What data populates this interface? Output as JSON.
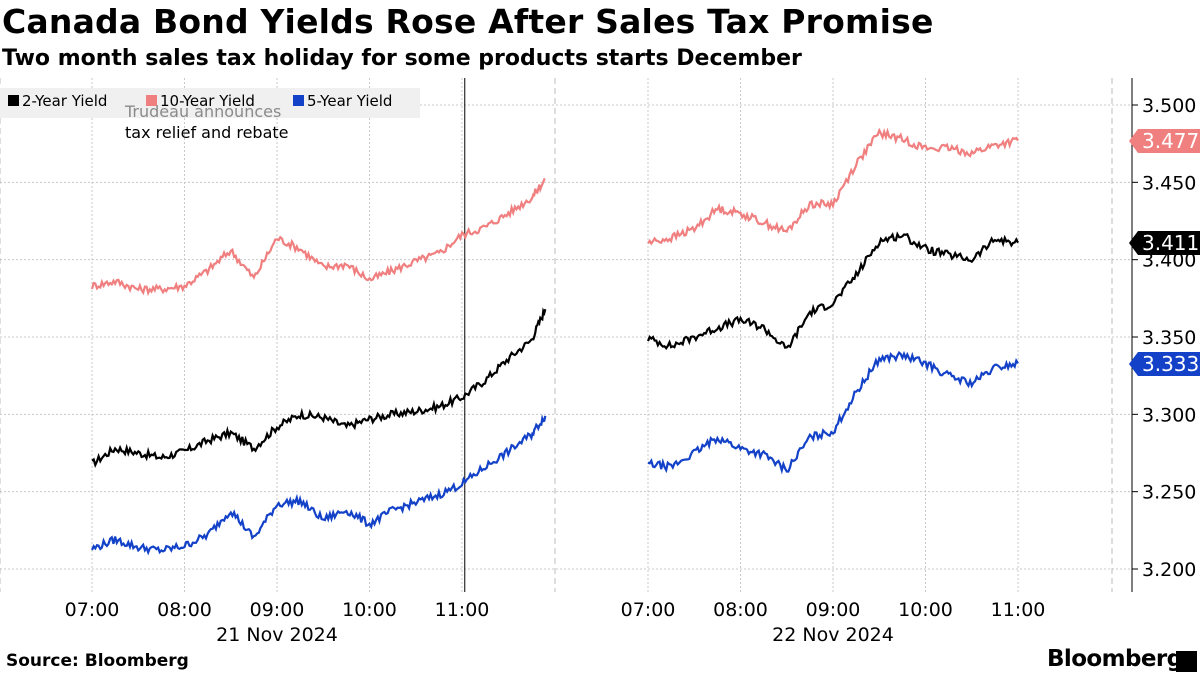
{
  "header": {
    "title": "Canada Bond Yields Rose After Sales Tax Promise",
    "subtitle": "Two month sales tax holiday for some products starts December"
  },
  "footer": {
    "source": "Source: Bloomberg",
    "brand": "Bloomberg"
  },
  "colors": {
    "two_year": "#000000",
    "ten_year": "#f07f80",
    "five_year": "#1342c9",
    "grid": "#c8c8c8"
  },
  "chart_data": {
    "type": "line",
    "title": "Canada Bond Yields Rose After Sales Tax Promise",
    "subtitle": "Two month sales tax holiday for some products starts December",
    "ylabel": "",
    "ylim": [
      3.19,
      3.53
    ],
    "yticks": [
      "3.200",
      "3.250",
      "3.300",
      "3.350",
      "3.400",
      "3.450",
      "3.500"
    ],
    "grid": true,
    "legend_position": "top-left",
    "sessions": [
      {
        "date_label": "21 Nov 2024",
        "x_ticks": [
          "07:00",
          "08:00",
          "09:00",
          "10:00",
          "11:00"
        ],
        "x_range_hours": [
          6.9,
          11.9
        ]
      },
      {
        "date_label": "22 Nov 2024",
        "x_ticks": [
          "07:00",
          "08:00",
          "09:00",
          "10:00",
          "11:00"
        ],
        "x_range_hours": [
          6.9,
          11.0
        ]
      }
    ],
    "x_hours": [
      7.0,
      7.25,
      7.5,
      7.75,
      8.0,
      8.25,
      8.5,
      8.75,
      9.0,
      9.25,
      9.5,
      9.75,
      10.0,
      10.25,
      10.5,
      10.75,
      11.0,
      11.25,
      11.5,
      11.75,
      11.9
    ],
    "x_hours_day2": [
      7.0,
      7.25,
      7.5,
      7.75,
      8.0,
      8.25,
      8.5,
      8.75,
      9.0,
      9.25,
      9.5,
      9.75,
      10.0,
      10.25,
      10.5,
      10.75,
      11.0
    ],
    "series": [
      {
        "name": "2-Year Yield",
        "color": "#000000",
        "day1": [
          3.268,
          3.278,
          3.275,
          3.272,
          3.276,
          3.283,
          3.288,
          3.278,
          3.292,
          3.3,
          3.298,
          3.292,
          3.297,
          3.3,
          3.302,
          3.305,
          3.311,
          3.322,
          3.336,
          3.348,
          3.368
        ],
        "day2": [
          3.349,
          3.344,
          3.35,
          3.356,
          3.361,
          3.356,
          3.342,
          3.366,
          3.372,
          3.39,
          3.412,
          3.416,
          3.407,
          3.403,
          3.4,
          3.413,
          3.411
        ],
        "last_value": "3.411"
      },
      {
        "name": "10-Year Yield",
        "color": "#f07f80",
        "day1": [
          3.383,
          3.386,
          3.381,
          3.381,
          3.383,
          3.393,
          3.406,
          3.388,
          3.414,
          3.407,
          3.395,
          3.397,
          3.387,
          3.393,
          3.399,
          3.404,
          3.416,
          3.421,
          3.43,
          3.44,
          3.452
        ],
        "day2": [
          3.411,
          3.414,
          3.42,
          3.433,
          3.43,
          3.424,
          3.418,
          3.436,
          3.436,
          3.462,
          3.482,
          3.478,
          3.472,
          3.472,
          3.469,
          3.474,
          3.477
        ],
        "last_value": "3.477"
      },
      {
        "name": "5-Year Yield",
        "color": "#1342c9",
        "day1": [
          3.213,
          3.219,
          3.214,
          3.212,
          3.215,
          3.222,
          3.238,
          3.22,
          3.242,
          3.244,
          3.232,
          3.238,
          3.229,
          3.238,
          3.243,
          3.248,
          3.255,
          3.266,
          3.276,
          3.287,
          3.299
        ],
        "day2": [
          3.268,
          3.266,
          3.275,
          3.285,
          3.278,
          3.274,
          3.264,
          3.285,
          3.289,
          3.314,
          3.336,
          3.338,
          3.333,
          3.325,
          3.32,
          3.33,
          3.333
        ],
        "last_value": "3.333"
      }
    ],
    "annotation": {
      "line1": "Trudeau announces",
      "line2": "tax relief and rebate",
      "day": "21 Nov 2024",
      "time_hours": 11.03
    }
  }
}
